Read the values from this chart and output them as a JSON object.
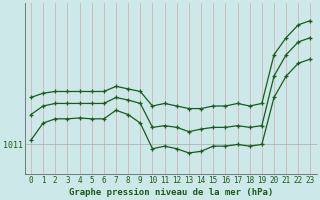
{
  "xlabel": "Graphe pression niveau de la mer (hPa)",
  "background_color": "#cce8e8",
  "plot_bg_color": "#cce8e8",
  "line_color": "#1a5c1a",
  "x_ticks": [
    0,
    1,
    2,
    3,
    4,
    5,
    6,
    7,
    8,
    9,
    10,
    11,
    12,
    13,
    14,
    15,
    16,
    17,
    18,
    19,
    20,
    21,
    22,
    23
  ],
  "xlim_min": -0.5,
  "xlim_max": 23.5,
  "ylim_min": 1007.5,
  "ylim_max": 1027.5,
  "ytick_val": 1011,
  "line1": [
    1011.5,
    1013.5,
    1014.0,
    1014.0,
    1014.1,
    1014.0,
    1014.0,
    1015.0,
    1014.5,
    1013.5,
    1010.5,
    1010.8,
    1010.5,
    1010.0,
    1010.2,
    1010.8,
    1010.8,
    1011.0,
    1010.8,
    1011.0,
    1016.5,
    1019.0,
    1020.5,
    1021.0
  ],
  "line2": [
    1014.5,
    1015.5,
    1015.8,
    1015.8,
    1015.8,
    1015.8,
    1015.8,
    1016.5,
    1016.2,
    1015.8,
    1013.0,
    1013.2,
    1013.0,
    1012.5,
    1012.8,
    1013.0,
    1013.0,
    1013.2,
    1013.0,
    1013.2,
    1019.0,
    1021.5,
    1023.0,
    1023.5
  ],
  "line3": [
    1016.5,
    1017.0,
    1017.2,
    1017.2,
    1017.2,
    1017.2,
    1017.2,
    1017.8,
    1017.5,
    1017.2,
    1015.5,
    1015.8,
    1015.5,
    1015.2,
    1015.2,
    1015.5,
    1015.5,
    1015.8,
    1015.5,
    1015.8,
    1021.5,
    1023.5,
    1025.0,
    1025.5
  ],
  "vgrid_color": "#d4aaaa",
  "hgrid_color": "#aaaaaa",
  "xlabel_fontsize": 6.5,
  "tick_fontsize": 5.5
}
